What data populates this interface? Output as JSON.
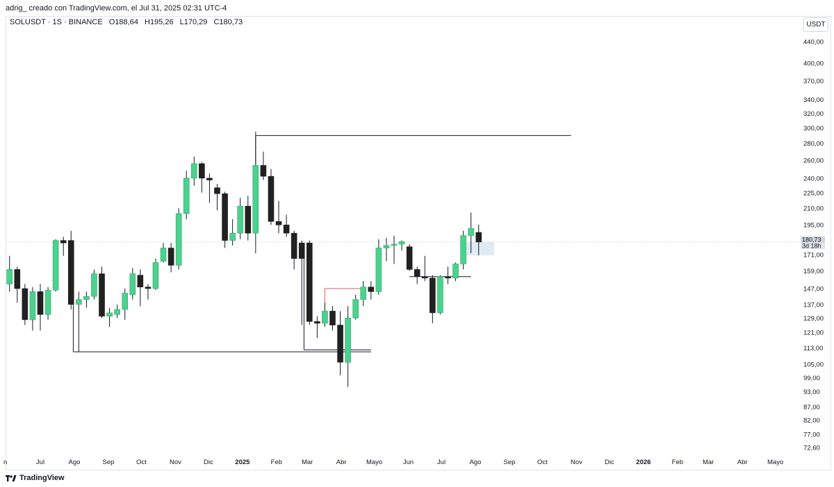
{
  "header": {
    "created_by": "adrig_ creado con TradingView.com, el Jul 31, 2025 02:31 UTC-4"
  },
  "legend": {
    "symbol": "SOLUSDT · 1S · BINANCE",
    "open": "O188,64",
    "high": "H195,26",
    "low": "L170,29",
    "close": "C180,73"
  },
  "currency_button": "USDT",
  "brand": "TradingView",
  "colors": {
    "up": "#4cd18e",
    "down": "#212121",
    "wick": "#131722",
    "grid": "#e0e3eb",
    "marker": "#e05a5a"
  },
  "chart_data": {
    "type": "candlestick",
    "symbol": "SOLUSDT",
    "interval": "1S",
    "exchange": "BINANCE",
    "y_scale": "log",
    "ylim": [
      70,
      460
    ],
    "y_ticks": [
      "440,00",
      "400,00",
      "370,00",
      "340,00",
      "320,00",
      "300,00",
      "280,00",
      "260,00",
      "240,00",
      "225,00",
      "210,00",
      "195,00",
      "171,00",
      "159,00",
      "147,00",
      "137,00",
      "129,00",
      "121,00",
      "113,00",
      "105,00",
      "99,00",
      "93,00",
      "87,00",
      "82,00",
      "77,00",
      "72,60"
    ],
    "x_ticks": [
      {
        "label": "Jul",
        "date": "2024-07-01"
      },
      {
        "label": "Ago",
        "date": "2024-08-01"
      },
      {
        "label": "Sep",
        "date": "2024-09-01"
      },
      {
        "label": "Oct",
        "date": "2024-10-01"
      },
      {
        "label": "Nov",
        "date": "2024-11-01"
      },
      {
        "label": "Dic",
        "date": "2024-12-01"
      },
      {
        "label": "2025",
        "date": "2025-01-01",
        "bold": true
      },
      {
        "label": "Feb",
        "date": "2025-02-01"
      },
      {
        "label": "Mar",
        "date": "2025-03-01"
      },
      {
        "label": "Abr",
        "date": "2025-04-01"
      },
      {
        "label": "Mayo",
        "date": "2025-05-01"
      },
      {
        "label": "Jun",
        "date": "2025-06-01"
      },
      {
        "label": "Jul",
        "date": "2025-07-01"
      },
      {
        "label": "Ago",
        "date": "2025-08-01"
      },
      {
        "label": "Sep",
        "date": "2025-09-01"
      },
      {
        "label": "Oct",
        "date": "2025-10-01"
      },
      {
        "label": "Nov",
        "date": "2025-11-01"
      },
      {
        "label": "Dic",
        "date": "2025-12-01"
      },
      {
        "label": "2026",
        "date": "2026-01-01",
        "bold": true
      },
      {
        "label": "Feb",
        "date": "2026-02-01"
      },
      {
        "label": "Mar",
        "date": "2026-03-01"
      },
      {
        "label": "Abr",
        "date": "2026-04-01"
      },
      {
        "label": "Mayo",
        "date": "2026-05-01"
      }
    ],
    "partial_left_tick": "n",
    "candles": [
      {
        "date": "2024-06-03",
        "o": 150,
        "h": 170,
        "l": 145,
        "c": 160
      },
      {
        "date": "2024-06-10",
        "o": 160,
        "h": 162,
        "l": 138,
        "c": 147
      },
      {
        "date": "2024-06-17",
        "o": 147,
        "h": 150,
        "l": 125,
        "c": 128
      },
      {
        "date": "2024-06-24",
        "o": 128,
        "h": 148,
        "l": 122,
        "c": 145
      },
      {
        "date": "2024-07-01",
        "o": 145,
        "h": 150,
        "l": 122,
        "c": 131
      },
      {
        "date": "2024-07-08",
        "o": 131,
        "h": 148,
        "l": 128,
        "c": 146
      },
      {
        "date": "2024-07-15",
        "o": 146,
        "h": 183,
        "l": 145,
        "c": 182
      },
      {
        "date": "2024-07-22",
        "o": 182,
        "h": 185,
        "l": 170,
        "c": 180
      },
      {
        "date": "2024-07-29",
        "o": 182,
        "h": 190,
        "l": 134,
        "c": 137
      },
      {
        "date": "2024-08-05",
        "o": 137,
        "h": 145,
        "l": 111,
        "c": 140
      },
      {
        "date": "2024-08-12",
        "o": 140,
        "h": 145,
        "l": 135,
        "c": 142
      },
      {
        "date": "2024-08-19",
        "o": 142,
        "h": 160,
        "l": 140,
        "c": 157
      },
      {
        "date": "2024-08-26",
        "o": 157,
        "h": 162,
        "l": 129,
        "c": 130
      },
      {
        "date": "2024-09-02",
        "o": 130,
        "h": 135,
        "l": 124,
        "c": 132
      },
      {
        "date": "2024-09-09",
        "o": 131,
        "h": 137,
        "l": 129,
        "c": 134
      },
      {
        "date": "2024-09-16",
        "o": 134,
        "h": 147,
        "l": 128,
        "c": 144
      },
      {
        "date": "2024-09-23",
        "o": 143,
        "h": 161,
        "l": 140,
        "c": 157
      },
      {
        "date": "2024-09-30",
        "o": 156,
        "h": 160,
        "l": 136,
        "c": 148
      },
      {
        "date": "2024-10-07",
        "o": 148,
        "h": 150,
        "l": 140,
        "c": 147
      },
      {
        "date": "2024-10-14",
        "o": 147,
        "h": 168,
        "l": 146,
        "c": 165
      },
      {
        "date": "2024-10-21",
        "o": 166,
        "h": 180,
        "l": 165,
        "c": 176
      },
      {
        "date": "2024-10-28",
        "o": 176,
        "h": 180,
        "l": 158,
        "c": 163
      },
      {
        "date": "2024-11-04",
        "o": 163,
        "h": 210,
        "l": 160,
        "c": 205
      },
      {
        "date": "2024-11-11",
        "o": 205,
        "h": 248,
        "l": 200,
        "c": 240
      },
      {
        "date": "2024-11-18",
        "o": 240,
        "h": 264,
        "l": 232,
        "c": 256
      },
      {
        "date": "2024-11-25",
        "o": 256,
        "h": 258,
        "l": 225,
        "c": 240
      },
      {
        "date": "2024-12-02",
        "o": 240,
        "h": 245,
        "l": 215,
        "c": 238
      },
      {
        "date": "2024-12-09",
        "o": 230,
        "h": 234,
        "l": 208,
        "c": 224
      },
      {
        "date": "2024-12-16",
        "o": 224,
        "h": 226,
        "l": 176,
        "c": 182
      },
      {
        "date": "2024-12-23",
        "o": 182,
        "h": 200,
        "l": 178,
        "c": 188
      },
      {
        "date": "2024-12-30",
        "o": 188,
        "h": 220,
        "l": 183,
        "c": 212
      },
      {
        "date": "2025-01-06",
        "o": 212,
        "h": 222,
        "l": 182,
        "c": 188
      },
      {
        "date": "2025-01-13",
        "o": 188,
        "h": 295,
        "l": 172,
        "c": 254
      },
      {
        "date": "2025-01-20",
        "o": 254,
        "h": 270,
        "l": 238,
        "c": 242
      },
      {
        "date": "2025-01-27",
        "o": 242,
        "h": 250,
        "l": 195,
        "c": 198
      },
      {
        "date": "2025-02-03",
        "o": 198,
        "h": 217,
        "l": 188,
        "c": 195
      },
      {
        "date": "2025-02-10",
        "o": 195,
        "h": 204,
        "l": 185,
        "c": 188
      },
      {
        "date": "2025-02-17",
        "o": 188,
        "h": 190,
        "l": 160,
        "c": 168
      },
      {
        "date": "2025-02-24",
        "o": 180,
        "h": 182,
        "l": 125,
        "c": 168
      },
      {
        "date": "2025-03-03",
        "o": 180,
        "h": 182,
        "l": 125,
        "c": 127
      },
      {
        "date": "2025-03-10",
        "o": 127,
        "h": 130,
        "l": 118,
        "c": 126
      },
      {
        "date": "2025-03-17",
        "o": 126,
        "h": 138,
        "l": 124,
        "c": 133
      },
      {
        "date": "2025-03-24",
        "o": 133,
        "h": 136,
        "l": 122,
        "c": 125
      },
      {
        "date": "2025-03-31",
        "o": 125,
        "h": 133,
        "l": 100,
        "c": 106
      },
      {
        "date": "2025-04-07",
        "o": 106,
        "h": 136,
        "l": 95,
        "c": 129
      },
      {
        "date": "2025-04-14",
        "o": 129,
        "h": 143,
        "l": 128,
        "c": 140
      },
      {
        "date": "2025-04-21",
        "o": 140,
        "h": 152,
        "l": 136,
        "c": 148
      },
      {
        "date": "2025-04-28",
        "o": 148,
        "h": 152,
        "l": 140,
        "c": 145
      },
      {
        "date": "2025-05-05",
        "o": 145,
        "h": 183,
        "l": 143,
        "c": 176
      },
      {
        "date": "2025-05-12",
        "o": 176,
        "h": 184,
        "l": 166,
        "c": 178
      },
      {
        "date": "2025-05-19",
        "o": 178,
        "h": 186,
        "l": 164,
        "c": 179
      },
      {
        "date": "2025-05-26",
        "o": 179,
        "h": 182,
        "l": 174,
        "c": 181
      },
      {
        "date": "2025-06-02",
        "o": 177,
        "h": 179,
        "l": 159,
        "c": 160
      },
      {
        "date": "2025-06-09",
        "o": 160,
        "h": 162,
        "l": 150,
        "c": 155
      },
      {
        "date": "2025-06-16",
        "o": 155,
        "h": 170,
        "l": 152,
        "c": 154
      },
      {
        "date": "2025-06-23",
        "o": 154,
        "h": 156,
        "l": 126,
        "c": 132
      },
      {
        "date": "2025-06-30",
        "o": 132,
        "h": 156,
        "l": 131,
        "c": 155
      },
      {
        "date": "2025-07-07",
        "o": 155,
        "h": 162,
        "l": 150,
        "c": 154
      },
      {
        "date": "2025-07-14",
        "o": 154,
        "h": 165,
        "l": 152,
        "c": 164
      },
      {
        "date": "2025-07-21",
        "o": 164,
        "h": 190,
        "l": 160,
        "c": 186
      },
      {
        "date": "2025-07-28",
        "o": 186,
        "h": 206,
        "l": 172,
        "c": 192
      },
      {
        "date": "2025-08-04",
        "o": 188.64,
        "h": 195.26,
        "l": 170.29,
        "c": 180.73
      }
    ],
    "drawings": [
      {
        "type": "hline",
        "price": 290,
        "from": "2025-01-13",
        "to": "2025-10-27",
        "color": "#131722"
      },
      {
        "type": "hline",
        "price": 111,
        "from": "2024-07-31",
        "to": "2025-04-28",
        "color": "#131722"
      },
      {
        "type": "hline",
        "price": 112,
        "from": "2025-02-26",
        "to": "2025-04-28",
        "color": "#131722"
      },
      {
        "type": "hline",
        "price": 155,
        "from": "2025-06-02",
        "to": "2025-07-28",
        "color": "#131722"
      },
      {
        "type": "hline",
        "price": 147,
        "from": "2025-03-17",
        "to": "2025-04-21",
        "color": "#e05a5a"
      }
    ],
    "last_price_label": "180,73",
    "countdown_label": "3d 18h",
    "highlight_zone": {
      "from": "2025-07-24",
      "to": "2025-08-18",
      "high": 180.7,
      "low": 170.5,
      "color": "#d6e6f3"
    }
  }
}
